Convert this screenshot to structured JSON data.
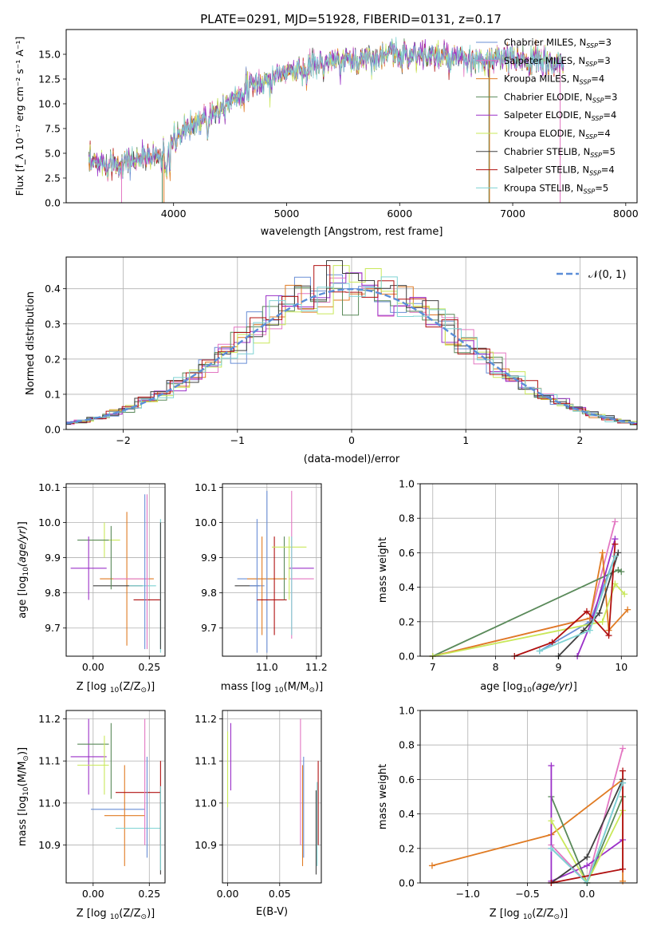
{
  "title": "PLATE=0291, MJD=51928, FIBERID=0131, z=0.17",
  "model_colors": [
    "#6a8fd6",
    "#e377c2",
    "#e07b23",
    "#5a8a5a",
    "#9b30c8",
    "#c9e85a",
    "#404040",
    "#b01010",
    "#7fd3d3"
  ],
  "chart_data": [
    {
      "id": "spectrum",
      "type": "line",
      "xlabel": "wavelength [Angstrom, rest frame]",
      "ylabel": "Flux [f_λ 10⁻¹⁷ erg cm⁻² s⁻¹ A⁻¹]",
      "xlim": [
        3050,
        8100
      ],
      "ylim": [
        0,
        17.5
      ],
      "xticks": [
        "4000",
        "5000",
        "6000",
        "7000",
        "8000"
      ],
      "yticks": [
        "0.0",
        "2.5",
        "5.0",
        "7.5",
        "10.0",
        "12.5",
        "15.0"
      ],
      "grid": false,
      "legend_position": "top-right",
      "continuum": {
        "x": [
          3250,
          3500,
          3700,
          3900,
          4000,
          4100,
          4300,
          4500,
          4700,
          4900,
          5100,
          5300,
          5500,
          5700,
          5900,
          6100,
          6300,
          6500,
          6700,
          6900,
          7100,
          7300,
          7450
        ],
        "y": [
          3.9,
          4.0,
          4.5,
          4.8,
          6.0,
          7.5,
          8.8,
          10.5,
          11.8,
          12.8,
          13.5,
          14.0,
          14.3,
          14.6,
          15.0,
          15.0,
          14.8,
          14.5,
          14.2,
          14.5,
          14.4,
          14.2,
          14.0
        ]
      },
      "spikes": [
        {
          "x": 3540,
          "series": 1
        },
        {
          "x": 3900,
          "series": 3
        },
        {
          "x": 3915,
          "series": 2
        },
        {
          "x": 6790,
          "series": 3
        },
        {
          "x": 6795,
          "series": 2
        },
        {
          "x": 7420,
          "series": 1
        }
      ],
      "series": [
        {
          "name": "Chabrier MILES, N_SSP=3",
          "label_main": "Chabrier MILES, N",
          "label_sub": "SSP",
          "label_tail": "=3"
        },
        {
          "name": "Salpeter MILES, N_SSP=3",
          "label_main": "Salpeter MILES, N",
          "label_sub": "SSP",
          "label_tail": "=3"
        },
        {
          "name": "Kroupa MILES, N_SSP=4",
          "label_main": "Kroupa MILES, N",
          "label_sub": "SSP",
          "label_tail": "=4"
        },
        {
          "name": "Chabrier ELODIE, N_SSP=3",
          "label_main": "Chabrier ELODIE, N",
          "label_sub": "SSP",
          "label_tail": "=3"
        },
        {
          "name": "Salpeter ELODIE, N_SSP=4",
          "label_main": "Salpeter ELODIE, N",
          "label_sub": "SSP",
          "label_tail": "=4"
        },
        {
          "name": "Kroupa ELODIE, N_SSP=4",
          "label_main": "Kroupa ELODIE, N",
          "label_sub": "SSP",
          "label_tail": "=4"
        },
        {
          "name": "Chabrier STELIB, N_SSP=5",
          "label_main": "Chabrier STELIB, N",
          "label_sub": "SSP",
          "label_tail": "=5"
        },
        {
          "name": "Salpeter STELIB, N_SSP=4",
          "label_main": "Salpeter STELIB, N",
          "label_sub": "SSP",
          "label_tail": "=4"
        },
        {
          "name": "Kroupa STELIB, N_SSP=5",
          "label_main": "Kroupa STELIB, N",
          "label_sub": "SSP",
          "label_tail": "=5"
        }
      ]
    },
    {
      "id": "residuals",
      "type": "histogram",
      "xlabel": "(data-model)/error",
      "ylabel": "Normed distribution",
      "xlim": [
        -2.5,
        2.5
      ],
      "ylim": [
        0,
        0.49
      ],
      "xticks": [
        "−2",
        "−1",
        "0",
        "1",
        "2"
      ],
      "yticks": [
        "0.0",
        "0.1",
        "0.2",
        "0.3",
        "0.4"
      ],
      "grid": true,
      "legend_position": "top-right",
      "legend_label": "𝒩(0, 1)",
      "bin_width": 0.14
    },
    {
      "id": "age_vs_Z",
      "type": "errorbar",
      "xlabel_main": "Z [log",
      "xlabel_tail": "(Z/Z",
      "ylabel": "age [log10(age/yr)]",
      "xlim": [
        -0.12,
        0.32
      ],
      "ylim": [
        9.62,
        10.11
      ],
      "xticks": [
        "0.00",
        "0.25"
      ],
      "yticks": [
        "9.7",
        "9.8",
        "9.9",
        "10.0",
        "10.1"
      ],
      "grid": true,
      "points": [
        {
          "x": 0.05,
          "y": 9.95,
          "xerr": 0.07,
          "yerr": 0.05,
          "series": 5
        },
        {
          "x": 0.0,
          "y": 9.95,
          "xerr": 0.07,
          "yerr": 0.0,
          "series": 3
        },
        {
          "x": -0.02,
          "y": 9.87,
          "xerr": 0.08,
          "yerr": 0.09,
          "series": 4
        },
        {
          "x": 0.15,
          "y": 9.84,
          "xerr": 0.12,
          "yerr": 0.19,
          "series": 2
        },
        {
          "x": 0.17,
          "y": 9.84,
          "xerr": 0.08,
          "yerr": 0.0,
          "series": 1
        },
        {
          "x": 0.11,
          "y": 9.82,
          "xerr": 0.11,
          "yerr": 0.0,
          "series": 6
        },
        {
          "x": 0.08,
          "y": 9.9,
          "xerr": 0.0,
          "yerr": 0.09,
          "series": 3
        },
        {
          "x": 0.22,
          "y": 9.82,
          "xerr": 0.06,
          "yerr": 0.0,
          "series": 8
        },
        {
          "x": 0.24,
          "y": 9.78,
          "xerr": 0.06,
          "yerr": 0.0,
          "series": 7
        },
        {
          "x": 0.23,
          "y": 9.86,
          "xerr": 0.0,
          "yerr": 0.22,
          "series": 0
        },
        {
          "x": 0.24,
          "y": 9.86,
          "xerr": 0.0,
          "yerr": 0.22,
          "series": 1
        },
        {
          "x": 0.3,
          "y": 9.82,
          "xerr": 0.0,
          "yerr": 0.19,
          "series": 8
        },
        {
          "x": 0.3,
          "y": 9.82,
          "xerr": 0.0,
          "yerr": 0.18,
          "series": 6
        }
      ]
    },
    {
      "id": "age_vs_mass",
      "type": "errorbar",
      "xlabel_main": "mass [log",
      "xlabel_tail": "(M/M",
      "xlim": [
        10.82,
        11.22
      ],
      "ylim": [
        9.62,
        10.11
      ],
      "xticks": [
        "11.0",
        "11.2"
      ],
      "yticks": [
        "9.7",
        "9.8",
        "9.9",
        "10.0",
        "10.1"
      ],
      "grid": true,
      "points": [
        {
          "x": 10.97,
          "y": 9.84,
          "xerr": 0.09,
          "yerr": 0.0,
          "series": 0
        },
        {
          "x": 11.0,
          "y": 9.84,
          "xerr": 0.08,
          "yerr": 0.0,
          "series": 2
        },
        {
          "x": 10.92,
          "y": 9.82,
          "xerr": 0.05,
          "yerr": 0.0,
          "series": 6
        },
        {
          "x": 10.96,
          "y": 9.82,
          "xerr": 0.03,
          "yerr": 0.19,
          "series": 0
        },
        {
          "x": 10.98,
          "y": 9.82,
          "xerr": 0.0,
          "yerr": 0.14,
          "series": 2
        },
        {
          "x": 11.0,
          "y": 9.86,
          "xerr": 0.0,
          "yerr": 0.23,
          "series": 0
        },
        {
          "x": 11.02,
          "y": 9.78,
          "xerr": 0.06,
          "yerr": 0.0,
          "series": 7
        },
        {
          "x": 11.03,
          "y": 9.82,
          "xerr": 0.0,
          "yerr": 0.14,
          "series": 7
        },
        {
          "x": 11.07,
          "y": 9.87,
          "xerr": 0.0,
          "yerr": 0.09,
          "series": 3
        },
        {
          "x": 11.09,
          "y": 9.93,
          "xerr": 0.07,
          "yerr": 0.0,
          "series": 5
        },
        {
          "x": 11.09,
          "y": 9.87,
          "xerr": 0.0,
          "yerr": 0.09,
          "series": 5
        },
        {
          "x": 11.14,
          "y": 9.87,
          "xerr": 0.05,
          "yerr": 0.0,
          "series": 4
        },
        {
          "x": 11.14,
          "y": 9.84,
          "xerr": 0.05,
          "yerr": 0.0,
          "series": 1
        },
        {
          "x": 11.1,
          "y": 9.88,
          "xerr": 0.0,
          "yerr": 0.21,
          "series": 1
        },
        {
          "x": 11.1,
          "y": 9.82,
          "xerr": 0.0,
          "yerr": 0.14,
          "series": 8
        }
      ]
    },
    {
      "id": "weight_vs_age",
      "type": "line",
      "xlabel": "age [log10(age/yr)]",
      "ylabel": "mass weight",
      "xlim": [
        6.8,
        10.25
      ],
      "ylim": [
        0,
        1
      ],
      "xticks": [
        "7",
        "8",
        "9",
        "10"
      ],
      "yticks": [
        "0.0",
        "0.2",
        "0.4",
        "0.6",
        "0.8",
        "1.0"
      ],
      "grid": true,
      "series": [
        {
          "x": [
            8.7,
            9.5,
            9.9
          ],
          "y": [
            0.03,
            0.2,
            0.58
          ],
          "color": 0
        },
        {
          "x": [
            7.0,
            9.5,
            9.9
          ],
          "y": [
            0.0,
            0.22,
            0.78
          ],
          "color": 1
        },
        {
          "x": [
            7.0,
            9.5,
            9.7,
            9.8,
            10.1
          ],
          "y": [
            0.0,
            0.22,
            0.6,
            0.15,
            0.27
          ],
          "color": 2
        },
        {
          "x": [
            7.0,
            9.95,
            10.0
          ],
          "y": [
            0.0,
            0.5,
            0.49
          ],
          "color": 3
        },
        {
          "x": [
            9.3,
            9.55,
            9.9
          ],
          "y": [
            0.0,
            0.22,
            0.68
          ],
          "color": 4
        },
        {
          "x": [
            7.0,
            9.7,
            9.9,
            10.05
          ],
          "y": [
            0.0,
            0.2,
            0.42,
            0.36
          ],
          "color": 5
        },
        {
          "x": [
            9.0,
            9.4,
            9.65,
            9.95
          ],
          "y": [
            0.0,
            0.15,
            0.25,
            0.6
          ],
          "color": 6
        },
        {
          "x": [
            8.3,
            8.9,
            9.45,
            9.8,
            9.9
          ],
          "y": [
            0.0,
            0.08,
            0.26,
            0.12,
            0.65
          ],
          "color": 7
        },
        {
          "x": [
            8.7,
            9.5,
            9.9
          ],
          "y": [
            0.03,
            0.15,
            0.58
          ],
          "color": 8
        }
      ]
    },
    {
      "id": "mass_vs_Z",
      "type": "errorbar",
      "xlabel_main": "Z [log",
      "xlabel_tail": "(Z/Z",
      "ylabel_main": "mass [log",
      "ylabel_tail": "(M/M",
      "xlim": [
        -0.12,
        0.32
      ],
      "ylim": [
        10.81,
        11.22
      ],
      "xticks": [
        "0.00",
        "0.25"
      ],
      "yticks": [
        "10.9",
        "11.0",
        "11.1",
        "11.2"
      ],
      "grid": true,
      "points": [
        {
          "x": -0.02,
          "y": 11.11,
          "xerr": 0.08,
          "yerr": 0.09,
          "series": 4
        },
        {
          "x": 0.0,
          "y": 11.14,
          "xerr": 0.07,
          "yerr": 0.0,
          "series": 3
        },
        {
          "x": 0.0,
          "y": 11.09,
          "xerr": 0.07,
          "yerr": 0.0,
          "series": 5
        },
        {
          "x": 0.05,
          "y": 11.09,
          "xerr": 0.0,
          "yerr": 0.07,
          "series": 5
        },
        {
          "x": 0.08,
          "y": 11.1,
          "xerr": 0.0,
          "yerr": 0.09,
          "series": 3
        },
        {
          "x": 0.11,
          "y": 10.985,
          "xerr": 0.12,
          "yerr": 0.0,
          "series": 0
        },
        {
          "x": 0.14,
          "y": 10.97,
          "xerr": 0.09,
          "yerr": 0.12,
          "series": 2
        },
        {
          "x": 0.2,
          "y": 11.025,
          "xerr": 0.1,
          "yerr": 0.0,
          "series": 7
        },
        {
          "x": 0.07,
          "y": 10.94,
          "xerr": 0.0,
          "yerr": 0.0,
          "series": 6
        },
        {
          "x": 0.2,
          "y": 10.94,
          "xerr": 0.1,
          "yerr": 0.0,
          "series": 8
        },
        {
          "x": 0.23,
          "y": 11.05,
          "xerr": 0.0,
          "yerr": 0.15,
          "series": 1
        },
        {
          "x": 0.24,
          "y": 10.99,
          "xerr": 0.0,
          "yerr": 0.12,
          "series": 0
        },
        {
          "x": 0.3,
          "y": 11.0,
          "xerr": 0.0,
          "yerr": 0.1,
          "series": 7
        },
        {
          "x": 0.3,
          "y": 10.93,
          "xerr": 0.0,
          "yerr": 0.1,
          "series": 6
        },
        {
          "x": 0.3,
          "y": 10.94,
          "xerr": 0.0,
          "yerr": 0.1,
          "series": 8
        }
      ]
    },
    {
      "id": "mass_vs_EBV",
      "type": "errorbar",
      "xlabel": "E(B-V)",
      "xlim": [
        -0.005,
        0.09
      ],
      "ylim": [
        10.81,
        11.22
      ],
      "xticks": [
        "0.00",
        "0.05"
      ],
      "yticks": [
        "10.9",
        "11.0",
        "11.1",
        "11.2"
      ],
      "grid": true,
      "points": [
        {
          "x": 0.0,
          "y": 11.08,
          "xerr": 0.0,
          "yerr": 0.09,
          "series": 5
        },
        {
          "x": 0.003,
          "y": 11.11,
          "xerr": 0.0,
          "yerr": 0.08,
          "series": 4
        },
        {
          "x": 0.07,
          "y": 11.05,
          "xerr": 0.0,
          "yerr": 0.15,
          "series": 1
        },
        {
          "x": 0.072,
          "y": 10.97,
          "xerr": 0.0,
          "yerr": 0.12,
          "series": 2
        },
        {
          "x": 0.073,
          "y": 10.99,
          "xerr": 0.0,
          "yerr": 0.12,
          "series": 0
        },
        {
          "x": 0.085,
          "y": 10.93,
          "xerr": 0.0,
          "yerr": 0.1,
          "series": 6
        },
        {
          "x": 0.086,
          "y": 10.95,
          "xerr": 0.0,
          "yerr": 0.1,
          "series": 8
        },
        {
          "x": 0.087,
          "y": 11.0,
          "xerr": 0.0,
          "yerr": 0.1,
          "series": 7
        }
      ]
    },
    {
      "id": "weight_vs_Z",
      "type": "line",
      "xlabel_main": "Z [log",
      "xlabel_tail": "(Z/Z",
      "ylabel": "mass weight",
      "xlim": [
        -1.4,
        0.42
      ],
      "ylim": [
        0,
        1
      ],
      "xticks": [
        "−1.0",
        "−0.5",
        "0.0"
      ],
      "yticks": [
        "0.0",
        "0.2",
        "0.4",
        "0.6",
        "0.8",
        "1.0"
      ],
      "grid": true,
      "series": [
        {
          "x": [
            -0.3,
            0.0,
            0.3
          ],
          "y": [
            0.2,
            0.0,
            0.58
          ],
          "color": 0
        },
        {
          "x": [
            -0.3,
            0.0,
            0.3
          ],
          "y": [
            0.22,
            0.0,
            0.78
          ],
          "color": 1
        },
        {
          "x": [
            -1.3,
            -0.3,
            0.3,
            0.3
          ],
          "y": [
            0.1,
            0.28,
            0.6,
            0.01
          ],
          "color": 2
        },
        {
          "x": [
            -0.3,
            0.0,
            0.3
          ],
          "y": [
            0.5,
            0.0,
            0.5
          ],
          "color": 3
        },
        {
          "x": [
            -0.3,
            -0.3,
            0.0,
            0.3
          ],
          "y": [
            0.68,
            0.01,
            0.1,
            0.25
          ],
          "color": 4
        },
        {
          "x": [
            -0.3,
            0.0,
            0.3
          ],
          "y": [
            0.36,
            0.0,
            0.42
          ],
          "color": 5
        },
        {
          "x": [
            -0.3,
            0.0,
            0.3
          ],
          "y": [
            0.0,
            0.15,
            0.6
          ],
          "color": 6
        },
        {
          "x": [
            -0.3,
            0.3,
            0.3
          ],
          "y": [
            0.0,
            0.08,
            0.65
          ],
          "color": 7
        },
        {
          "x": [
            -0.3,
            0.0,
            0.3
          ],
          "y": [
            0.2,
            0.0,
            0.58
          ],
          "color": 8
        }
      ]
    }
  ]
}
